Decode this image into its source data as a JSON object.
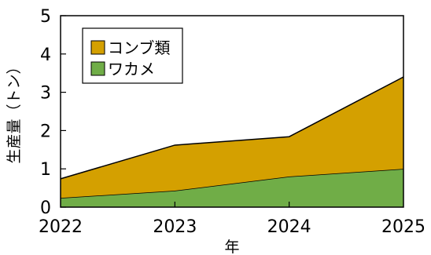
{
  "chart_data": {
    "type": "area",
    "stacked": true,
    "x": [
      "2022",
      "2023",
      "2024",
      "2025"
    ],
    "series": [
      {
        "name": "ワカメ",
        "values": [
          0.24,
          0.43,
          0.8,
          1.0
        ],
        "color": "#70AD47"
      },
      {
        "name": "コンブ類",
        "values": [
          0.5,
          1.19,
          1.04,
          2.4
        ],
        "color": "#D4A000"
      }
    ],
    "xlabel": "年",
    "ylabel": "生産量（トン）",
    "ylim": [
      0,
      5
    ],
    "yticks": [
      "0",
      "1",
      "2",
      "3",
      "4",
      "5"
    ],
    "grid": false,
    "legend_position": "top-left"
  }
}
